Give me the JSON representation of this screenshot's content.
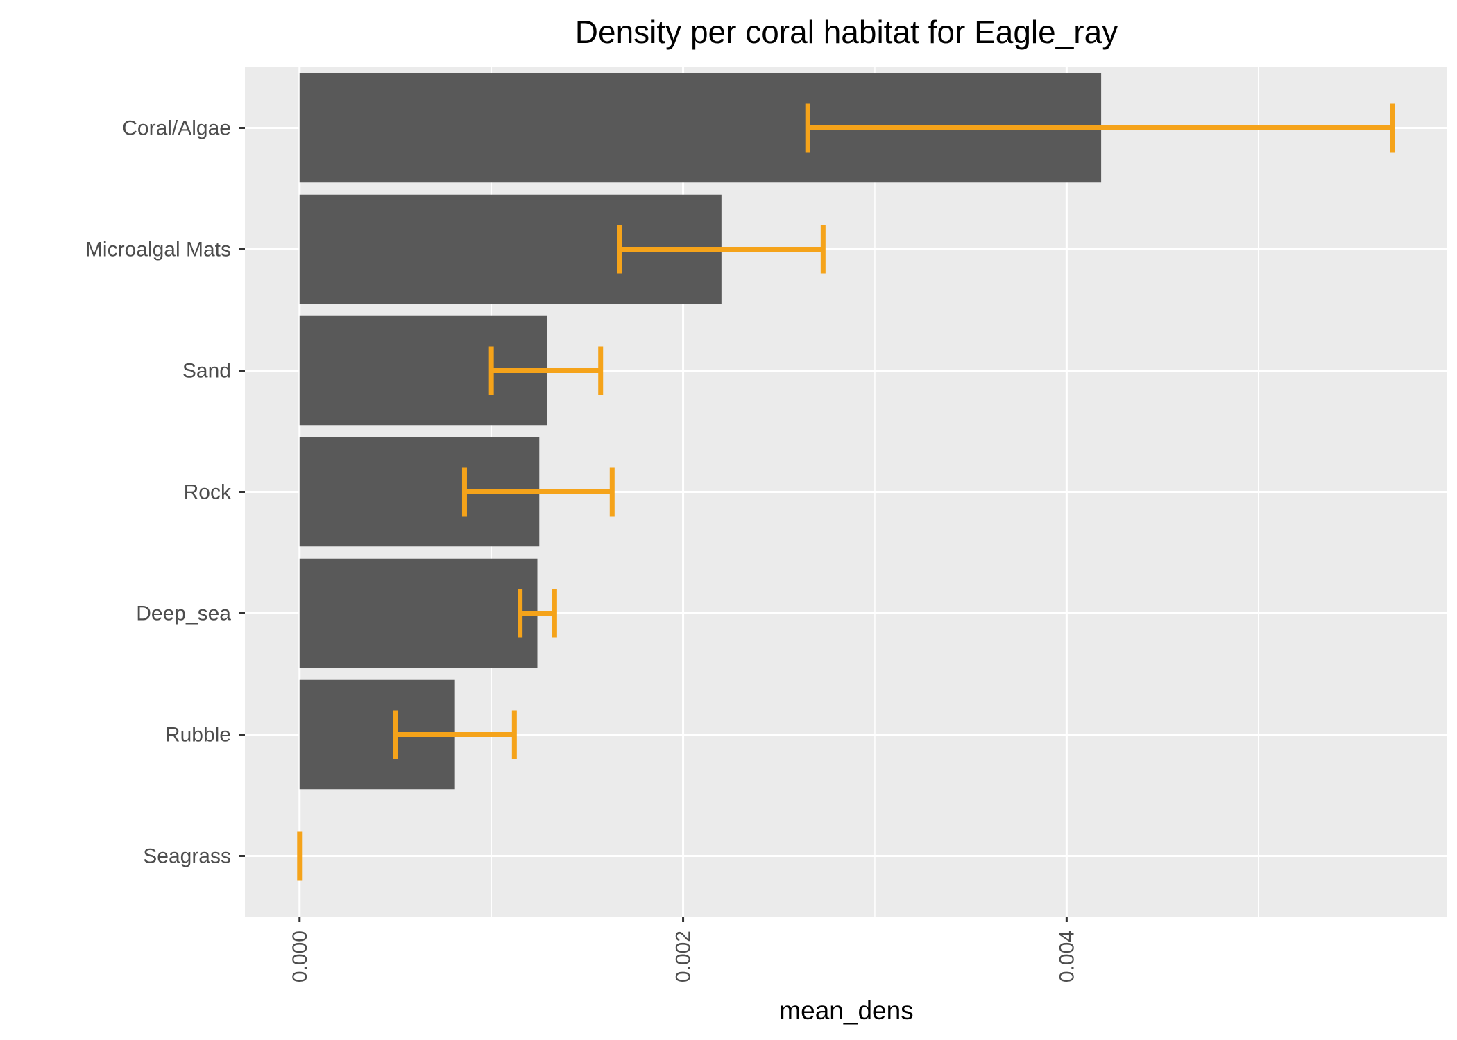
{
  "chart_data": {
    "type": "bar",
    "orientation": "horizontal",
    "title": "Density per coral habitat for Eagle_ray",
    "xlabel": "mean_dens",
    "ylabel": "",
    "categories": [
      "Coral/Algae",
      "Microalgal Mats",
      "Sand",
      "Rock",
      "Deep_sea",
      "Rubble",
      "Seagrass"
    ],
    "values": [
      0.00418,
      0.0022,
      0.00129,
      0.00125,
      0.00124,
      0.00081,
      0.0
    ],
    "error_low": [
      0.00265,
      0.00167,
      0.001,
      0.00086,
      0.00115,
      0.0005,
      0.0
    ],
    "error_high": [
      0.0057,
      0.00273,
      0.00157,
      0.00163,
      0.00133,
      0.00112,
      0.0
    ],
    "x_ticks": [
      "0.000",
      "0.002",
      "0.004"
    ],
    "x_tick_values": [
      0.0,
      0.002,
      0.004
    ],
    "xlim": [
      -0.000285,
      0.005985
    ],
    "grid": true,
    "colors": {
      "bar": "#595959",
      "error_bar": "#f5a31a",
      "panel": "#ebebeb",
      "grid": "#ffffff"
    }
  }
}
